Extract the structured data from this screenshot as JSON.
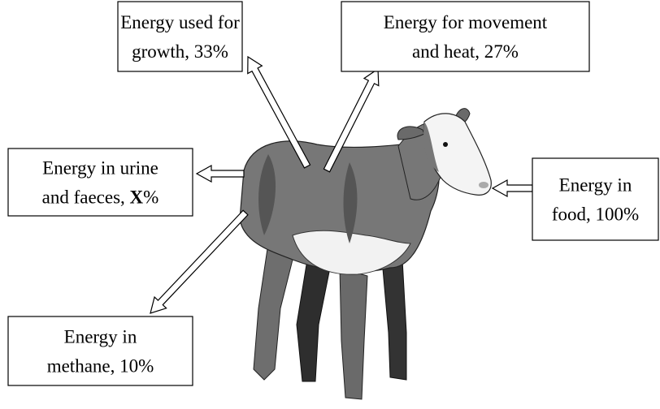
{
  "boxes": [
    {
      "lines": [
        "Energy used for",
        "growth, 33%"
      ]
    },
    {
      "lines": [
        "Energy for movement",
        "and heat, 27%"
      ]
    },
    {
      "lines": [
        "Energy in urine",
        "and faeces, "
      ],
      "variable": "X",
      "unit": "%"
    },
    {
      "lines": [
        "Energy in",
        "food, 100%"
      ]
    },
    {
      "lines": [
        "Energy in",
        "methane, 10%"
      ]
    }
  ]
}
